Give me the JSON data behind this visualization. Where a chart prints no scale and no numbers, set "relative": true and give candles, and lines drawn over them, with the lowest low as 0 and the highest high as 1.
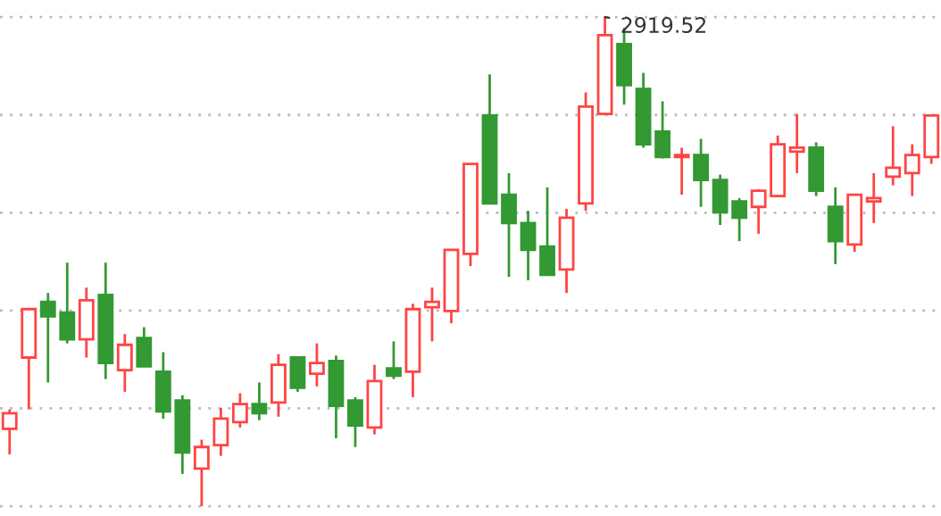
{
  "chart_data": {
    "type": "candlestick",
    "relative": true,
    "grid": "y",
    "categories": [
      null,
      null,
      null,
      null,
      null,
      null,
      null,
      null,
      null,
      null,
      null,
      null,
      null,
      null,
      null,
      null,
      null,
      null,
      null,
      null,
      null,
      null,
      null,
      null,
      null,
      null,
      null,
      null,
      null,
      null,
      null,
      null,
      null,
      null,
      null,
      null,
      null,
      null,
      null,
      null,
      null,
      null,
      null,
      null,
      null,
      null,
      null,
      null,
      null
    ],
    "ohlc": [
      [
        0.158,
        0.198,
        0.106,
        0.19
      ],
      [
        0.304,
        0.403,
        0.198,
        0.403
      ],
      [
        0.418,
        0.436,
        0.253,
        0.388
      ],
      [
        0.396,
        0.498,
        0.333,
        0.341
      ],
      [
        0.341,
        0.447,
        0.304,
        0.421
      ],
      [
        0.432,
        0.498,
        0.26,
        0.293
      ],
      [
        0.278,
        0.352,
        0.234,
        0.33
      ],
      [
        0.344,
        0.366,
        0.286,
        0.286
      ],
      [
        0.275,
        0.315,
        0.179,
        0.194
      ],
      [
        0.216,
        0.227,
        0.066,
        0.11
      ],
      [
        0.077,
        0.136,
        0.0,
        0.121
      ],
      [
        0.125,
        0.201,
        0.103,
        0.179
      ],
      [
        0.172,
        0.231,
        0.161,
        0.209
      ],
      [
        0.209,
        0.253,
        0.176,
        0.19
      ],
      [
        0.212,
        0.311,
        0.183,
        0.289
      ],
      [
        0.304,
        0.304,
        0.234,
        0.242
      ],
      [
        0.271,
        0.333,
        0.245,
        0.293
      ],
      [
        0.297,
        0.308,
        0.139,
        0.205
      ],
      [
        0.216,
        0.223,
        0.121,
        0.165
      ],
      [
        0.161,
        0.289,
        0.147,
        0.256
      ],
      [
        0.282,
        0.337,
        0.26,
        0.267
      ],
      [
        0.275,
        0.414,
        0.223,
        0.403
      ],
      [
        0.407,
        0.447,
        0.337,
        0.418
      ],
      [
        0.399,
        0.524,
        0.374,
        0.524
      ],
      [
        0.516,
        0.7,
        0.491,
        0.7
      ],
      [
        0.799,
        0.883,
        0.619,
        0.619
      ],
      [
        0.637,
        0.681,
        0.469,
        0.579
      ],
      [
        0.579,
        0.604,
        0.462,
        0.524
      ],
      [
        0.531,
        0.652,
        0.473,
        0.473
      ],
      [
        0.484,
        0.608,
        0.436,
        0.59
      ],
      [
        0.619,
        0.846,
        0.604,
        0.817
      ],
      [
        0.802,
        1.0,
        0.802,
        0.963
      ],
      [
        0.945,
        0.978,
        0.821,
        0.861
      ],
      [
        0.853,
        0.886,
        0.733,
        0.74
      ],
      [
        0.766,
        0.828,
        0.711,
        0.714
      ],
      [
        0.714,
        0.733,
        0.637,
        0.718
      ],
      [
        0.718,
        0.751,
        0.612,
        0.667
      ],
      [
        0.667,
        0.678,
        0.575,
        0.601
      ],
      [
        0.623,
        0.63,
        0.542,
        0.59
      ],
      [
        0.612,
        0.648,
        0.557,
        0.645
      ],
      [
        0.634,
        0.758,
        0.634,
        0.74
      ],
      [
        0.725,
        0.802,
        0.681,
        0.733
      ],
      [
        0.733,
        0.744,
        0.634,
        0.645
      ],
      [
        0.612,
        0.652,
        0.495,
        0.542
      ],
      [
        0.535,
        0.637,
        0.52,
        0.637
      ],
      [
        0.623,
        0.681,
        0.579,
        0.63
      ],
      [
        0.674,
        0.777,
        0.656,
        0.692
      ],
      [
        0.681,
        0.74,
        0.634,
        0.718
      ],
      [
        0.714,
        0.799,
        0.7,
        0.799
      ]
    ],
    "colors": [
      "#ff4444",
      "#ff4444",
      "#339933",
      "#339933",
      "#ff4444",
      "#339933",
      "#ff4444",
      "#339933",
      "#339933",
      "#339933",
      "#ff4444",
      "#ff4444",
      "#ff4444",
      "#339933",
      "#ff4444",
      "#339933",
      "#ff4444",
      "#339933",
      "#339933",
      "#ff4444",
      "#339933",
      "#ff4444",
      "#ff4444",
      "#ff4444",
      "#ff4444",
      "#339933",
      "#339933",
      "#339933",
      "#339933",
      "#ff4444",
      "#ff4444",
      "#ff4444",
      "#339933",
      "#339933",
      "#339933",
      "#ff4444",
      "#339933",
      "#339933",
      "#339933",
      "#ff4444",
      "#ff4444",
      "#ff4444",
      "#339933",
      "#339933",
      "#ff4444",
      "#ff4444",
      "#ff4444",
      "#ff4444",
      "#ff4444"
    ],
    "annotations": [
      "2919.52"
    ]
  }
}
